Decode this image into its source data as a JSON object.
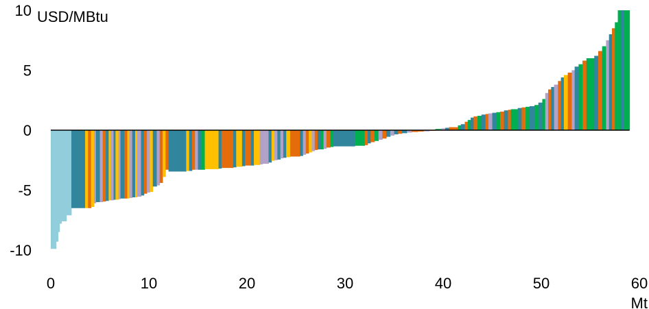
{
  "chart_data": {
    "type": "bar",
    "ylabel": "USD/MBtu",
    "xlabel": "Mt",
    "xlim": [
      0,
      60
    ],
    "ylim": [
      -10,
      10
    ],
    "x_ticks": [
      0,
      10,
      20,
      30,
      40,
      50,
      60
    ],
    "y_ticks": [
      10,
      5,
      0,
      -5,
      -10
    ],
    "grid": false,
    "legend": "none",
    "colors": {
      "light_blue": "#92CDDC",
      "teal": "#31859C",
      "yellow": "#FFC000",
      "lavender": "#B3A2C7",
      "orange": "#E46C0A",
      "green": "#00B050"
    },
    "series": [
      {
        "values": [
          [
            0.0,
            0.55,
            -9.9,
            "light_blue"
          ],
          [
            0.55,
            0.75,
            -9.3,
            "light_blue"
          ],
          [
            0.75,
            0.9,
            -8.5,
            "light_blue"
          ],
          [
            0.9,
            1.1,
            -7.8,
            "light_blue"
          ],
          [
            1.1,
            1.6,
            -7.6,
            "light_blue"
          ],
          [
            1.6,
            2.1,
            -7.1,
            "light_blue"
          ],
          [
            2.1,
            3.5,
            -6.5,
            "teal"
          ],
          [
            3.5,
            3.8,
            -6.5,
            "yellow"
          ],
          [
            3.8,
            4.1,
            -6.5,
            "orange"
          ],
          [
            4.1,
            4.4,
            -6.4,
            "yellow"
          ],
          [
            4.4,
            4.6,
            -6.1,
            "lavender"
          ],
          [
            4.6,
            5.0,
            -6.0,
            "teal"
          ],
          [
            5.0,
            5.3,
            -6.0,
            "lavender"
          ],
          [
            5.3,
            5.6,
            -5.95,
            "orange"
          ],
          [
            5.6,
            5.9,
            -5.9,
            "teal"
          ],
          [
            5.9,
            6.1,
            -5.85,
            "yellow"
          ],
          [
            6.1,
            6.4,
            -5.85,
            "lavender"
          ],
          [
            6.4,
            6.6,
            -5.8,
            "teal"
          ],
          [
            6.6,
            6.9,
            -5.8,
            "yellow"
          ],
          [
            6.9,
            7.1,
            -5.75,
            "lavender"
          ],
          [
            7.1,
            7.5,
            -5.7,
            "teal"
          ],
          [
            7.5,
            7.8,
            -5.7,
            "orange"
          ],
          [
            7.8,
            8.0,
            -5.7,
            "yellow"
          ],
          [
            8.0,
            8.3,
            -5.65,
            "lavender"
          ],
          [
            8.3,
            8.6,
            -5.6,
            "teal"
          ],
          [
            8.6,
            8.8,
            -5.6,
            "yellow"
          ],
          [
            8.8,
            9.2,
            -5.55,
            "lavender"
          ],
          [
            9.2,
            9.5,
            -5.45,
            "teal"
          ],
          [
            9.5,
            9.8,
            -5.3,
            "orange"
          ],
          [
            9.8,
            10.1,
            -5.2,
            "lavender"
          ],
          [
            10.1,
            10.4,
            -5.15,
            "yellow"
          ],
          [
            10.4,
            10.8,
            -4.7,
            "teal"
          ],
          [
            10.8,
            11.1,
            -4.6,
            "lavender"
          ],
          [
            11.1,
            11.4,
            -4.4,
            "orange"
          ],
          [
            11.4,
            11.7,
            -3.9,
            "yellow"
          ],
          [
            11.7,
            12.0,
            -3.3,
            "orange"
          ],
          [
            12.0,
            13.8,
            -3.45,
            "teal"
          ],
          [
            13.8,
            14.1,
            -3.4,
            "yellow"
          ],
          [
            14.1,
            14.4,
            -3.4,
            "teal"
          ],
          [
            14.4,
            14.7,
            -3.3,
            "orange"
          ],
          [
            14.7,
            15.0,
            -3.3,
            "lavender"
          ],
          [
            15.0,
            15.3,
            -3.3,
            "teal"
          ],
          [
            15.3,
            15.7,
            -3.3,
            "green"
          ],
          [
            15.7,
            17.1,
            -3.25,
            "yellow"
          ],
          [
            17.1,
            17.4,
            -3.2,
            "teal"
          ],
          [
            17.4,
            18.6,
            -3.15,
            "orange"
          ],
          [
            18.6,
            18.9,
            -3.1,
            "teal"
          ],
          [
            18.9,
            19.5,
            -3.05,
            "yellow"
          ],
          [
            19.5,
            19.8,
            -3.0,
            "teal"
          ],
          [
            19.8,
            20.4,
            -2.95,
            "orange"
          ],
          [
            20.4,
            20.7,
            -2.95,
            "teal"
          ],
          [
            20.7,
            21.3,
            -2.9,
            "yellow"
          ],
          [
            21.3,
            21.6,
            -2.85,
            "lavender"
          ],
          [
            21.6,
            22.2,
            -2.8,
            "lavender"
          ],
          [
            22.2,
            22.5,
            -2.7,
            "teal"
          ],
          [
            22.5,
            22.8,
            -2.55,
            "yellow"
          ],
          [
            22.8,
            23.1,
            -2.5,
            "lavender"
          ],
          [
            23.1,
            23.4,
            -2.45,
            "teal"
          ],
          [
            23.4,
            23.7,
            -2.35,
            "lavender"
          ],
          [
            23.7,
            24.0,
            -2.3,
            "teal"
          ],
          [
            24.0,
            24.4,
            -2.25,
            "yellow"
          ],
          [
            24.4,
            25.4,
            -2.2,
            "orange"
          ],
          [
            25.4,
            25.7,
            -2.15,
            "teal"
          ],
          [
            25.7,
            26.0,
            -2.05,
            "lavender"
          ],
          [
            26.0,
            26.3,
            -1.95,
            "orange"
          ],
          [
            26.3,
            26.6,
            -1.85,
            "yellow"
          ],
          [
            26.6,
            26.9,
            -1.75,
            "lavender"
          ],
          [
            26.9,
            27.2,
            -1.65,
            "orange"
          ],
          [
            27.2,
            27.5,
            -1.6,
            "teal"
          ],
          [
            27.5,
            27.8,
            -1.6,
            "green"
          ],
          [
            27.8,
            28.1,
            -1.55,
            "lavender"
          ],
          [
            28.1,
            28.5,
            -1.45,
            "orange"
          ],
          [
            28.5,
            28.8,
            -1.4,
            "green"
          ],
          [
            28.8,
            31.0,
            -1.35,
            "teal"
          ],
          [
            31.0,
            32.0,
            -1.3,
            "green"
          ],
          [
            32.0,
            32.3,
            -1.25,
            "orange"
          ],
          [
            32.3,
            32.6,
            -1.1,
            "teal"
          ],
          [
            32.6,
            33.0,
            -1.0,
            "orange"
          ],
          [
            33.0,
            33.4,
            -0.9,
            "green"
          ],
          [
            33.4,
            33.8,
            -0.8,
            "lavender"
          ],
          [
            33.8,
            34.2,
            -0.7,
            "orange"
          ],
          [
            34.2,
            34.6,
            -0.55,
            "teal"
          ],
          [
            34.6,
            35.0,
            -0.45,
            "lavender"
          ],
          [
            35.0,
            35.4,
            -0.35,
            "teal"
          ],
          [
            35.4,
            35.8,
            -0.3,
            "orange"
          ],
          [
            35.8,
            36.3,
            -0.25,
            "teal"
          ],
          [
            36.3,
            36.8,
            -0.2,
            "lavender"
          ],
          [
            36.8,
            37.4,
            -0.15,
            "orange"
          ],
          [
            37.4,
            38.0,
            -0.12,
            "orange"
          ],
          [
            38.0,
            38.6,
            -0.1,
            "lavender"
          ],
          [
            38.6,
            39.2,
            -0.05,
            "orange"
          ],
          [
            39.2,
            39.8,
            0.1,
            "green"
          ],
          [
            39.8,
            40.2,
            0.15,
            "lavender"
          ],
          [
            40.2,
            40.6,
            0.2,
            "teal"
          ],
          [
            40.6,
            41.5,
            0.25,
            "orange"
          ],
          [
            41.5,
            41.8,
            0.4,
            "green"
          ],
          [
            41.8,
            42.2,
            0.5,
            "teal"
          ],
          [
            42.2,
            42.5,
            0.7,
            "orange"
          ],
          [
            42.5,
            42.8,
            0.85,
            "green"
          ],
          [
            42.8,
            43.1,
            1.05,
            "teal"
          ],
          [
            43.1,
            43.5,
            1.15,
            "orange"
          ],
          [
            43.5,
            43.9,
            1.2,
            "green"
          ],
          [
            43.9,
            44.3,
            1.3,
            "teal"
          ],
          [
            44.3,
            44.6,
            1.35,
            "orange"
          ],
          [
            44.6,
            45.0,
            1.4,
            "lavender"
          ],
          [
            45.0,
            45.4,
            1.45,
            "teal"
          ],
          [
            45.4,
            45.8,
            1.5,
            "green"
          ],
          [
            45.8,
            46.2,
            1.55,
            "orange"
          ],
          [
            46.2,
            46.6,
            1.65,
            "teal"
          ],
          [
            46.6,
            46.9,
            1.7,
            "orange"
          ],
          [
            46.9,
            47.6,
            1.75,
            "green"
          ],
          [
            47.6,
            48.0,
            1.85,
            "teal"
          ],
          [
            48.0,
            48.4,
            1.9,
            "orange"
          ],
          [
            48.4,
            48.8,
            1.95,
            "green"
          ],
          [
            48.8,
            49.3,
            2.0,
            "teal"
          ],
          [
            49.3,
            49.7,
            2.1,
            "green"
          ],
          [
            49.7,
            50.1,
            2.3,
            "teal"
          ],
          [
            50.1,
            50.4,
            2.6,
            "green"
          ],
          [
            50.4,
            50.7,
            3.1,
            "lavender"
          ],
          [
            50.7,
            51.0,
            3.4,
            "orange"
          ],
          [
            51.0,
            51.3,
            3.6,
            "teal"
          ],
          [
            51.3,
            51.7,
            3.8,
            "lavender"
          ],
          [
            51.7,
            52.0,
            4.1,
            "orange"
          ],
          [
            52.0,
            52.3,
            4.4,
            "teal"
          ],
          [
            52.3,
            52.7,
            4.6,
            "yellow"
          ],
          [
            52.7,
            53.1,
            4.8,
            "orange"
          ],
          [
            53.1,
            53.4,
            5.0,
            "lavender"
          ],
          [
            53.4,
            53.8,
            5.3,
            "teal"
          ],
          [
            53.8,
            54.2,
            5.5,
            "green"
          ],
          [
            54.2,
            54.6,
            5.8,
            "orange"
          ],
          [
            54.6,
            55.4,
            6.0,
            "green"
          ],
          [
            55.4,
            55.8,
            6.2,
            "teal"
          ],
          [
            55.8,
            56.2,
            6.6,
            "orange"
          ],
          [
            56.2,
            56.6,
            7.0,
            "green"
          ],
          [
            56.6,
            56.9,
            7.5,
            "lavender"
          ],
          [
            56.9,
            57.2,
            8.0,
            "teal"
          ],
          [
            57.2,
            57.5,
            8.5,
            "orange"
          ],
          [
            57.5,
            57.8,
            9.0,
            "green"
          ],
          [
            57.8,
            58.1,
            10.0,
            "green"
          ],
          [
            58.1,
            58.4,
            10.0,
            "teal"
          ],
          [
            58.4,
            59.0,
            10.0,
            "green"
          ]
        ]
      }
    ]
  }
}
